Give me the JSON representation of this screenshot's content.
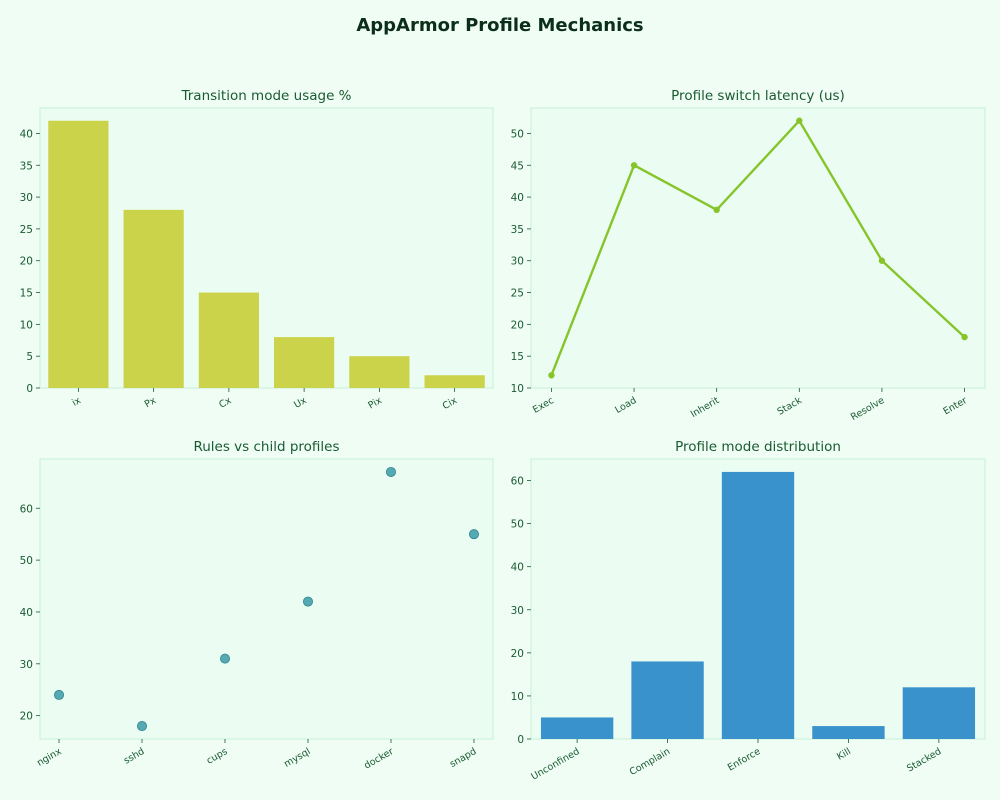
{
  "title": "AppArmor Profile Mechanics",
  "colors": {
    "background": "#effdf4",
    "axes_face": "#ebfdf3",
    "axes_edge": "#c8f0d6",
    "text": "#1a5a32",
    "title": "#0b2e1b"
  },
  "chart_data": [
    {
      "type": "bar",
      "title": "Transition mode usage %",
      "categories": [
        "ix",
        "Px",
        "Cx",
        "Ux",
        "Pix",
        "Cix"
      ],
      "values": [
        42,
        28,
        15,
        8,
        5,
        2
      ],
      "ylim": [
        0,
        44
      ],
      "yticks": [
        0,
        5,
        10,
        15,
        20,
        25,
        30,
        35,
        40
      ],
      "color": "#cbd34b",
      "grid": false
    },
    {
      "type": "line",
      "title": "Profile switch latency (us)",
      "categories": [
        "Exec",
        "Load",
        "Inherit",
        "Stack",
        "Resolve",
        "Enter"
      ],
      "values": [
        12,
        45,
        38,
        52,
        30,
        18
      ],
      "ylim": [
        10,
        54
      ],
      "yticks": [
        10,
        15,
        20,
        25,
        30,
        35,
        40,
        45,
        50
      ],
      "color": "#86c52a",
      "grid": false
    },
    {
      "type": "scatter",
      "title": "Rules vs child profiles",
      "categories": [
        "nginx",
        "sshd",
        "cups",
        "mysql",
        "docker",
        "snapd"
      ],
      "values": [
        24,
        18,
        31,
        42,
        67,
        55
      ],
      "ylim": [
        15.5,
        69.5
      ],
      "yticks": [
        20,
        30,
        40,
        50,
        60
      ],
      "color": "#3a9aa6",
      "grid": false
    },
    {
      "type": "bar",
      "title": "Profile mode distribution",
      "categories": [
        "Unconfined",
        "Complain",
        "Enforce",
        "Kill",
        "Stacked"
      ],
      "values": [
        5,
        18,
        62,
        3,
        12
      ],
      "ylim": [
        0,
        65
      ],
      "yticks": [
        0,
        10,
        20,
        30,
        40,
        50,
        60
      ],
      "color": "#3a92cc",
      "grid": false
    }
  ]
}
